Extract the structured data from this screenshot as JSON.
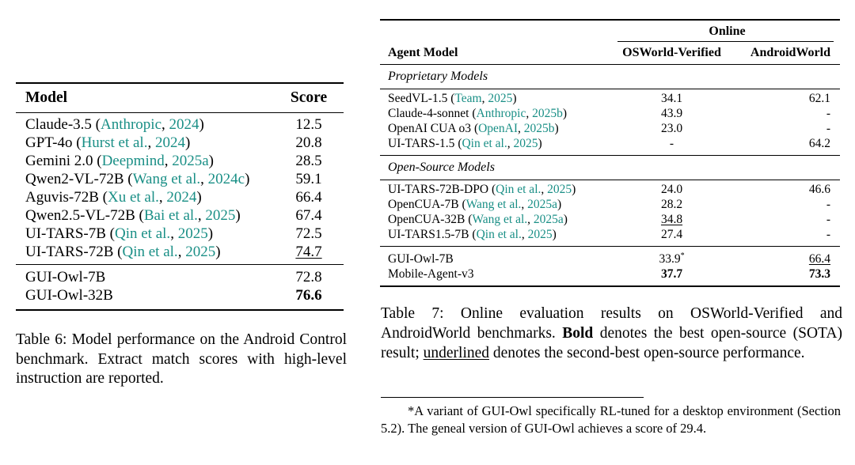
{
  "table6": {
    "headers": {
      "model": "Model",
      "score": "Score"
    },
    "rows_baseline": [
      {
        "model": "Claude-3.5",
        "cite_author": "Anthropic",
        "cite_year": "2024",
        "score": "12.5"
      },
      {
        "model": "GPT-4o",
        "cite_author": "Hurst et al.",
        "cite_year": "2024",
        "score": "20.8"
      },
      {
        "model": "Gemini 2.0",
        "cite_author": "Deepmind",
        "cite_year": "2025a",
        "score": "28.5"
      },
      {
        "model": "Qwen2-VL-72B",
        "cite_author": "Wang et al.",
        "cite_year": "2024c",
        "score": "59.1"
      },
      {
        "model": "Aguvis-72B",
        "cite_author": "Xu et al.",
        "cite_year": "2024",
        "score": "66.4"
      },
      {
        "model": "Qwen2.5-VL-72B",
        "cite_author": "Bai et al.",
        "cite_year": "2025",
        "score": "67.4"
      },
      {
        "model": "UI-TARS-7B",
        "cite_author": "Qin et al.",
        "cite_year": "2025",
        "score": "72.5"
      },
      {
        "model": "UI-TARS-72B",
        "cite_author": "Qin et al.",
        "cite_year": "2025",
        "score": "74.7"
      }
    ],
    "rows_ours": [
      {
        "model": "GUI-Owl-7B",
        "score": "72.8"
      },
      {
        "model": "GUI-Owl-32B",
        "score": "76.6"
      }
    ],
    "caption": "Table 6: Model performance on the Android Control benchmark. Extract match scores with high-level instruction are reported."
  },
  "table7": {
    "header_online": "Online",
    "header_model": "Agent Model",
    "header_osworld": "OSWorld-Verified",
    "header_android": "AndroidWorld",
    "group_proprietary": "Proprietary Models",
    "group_open": "Open-Source Models",
    "proprietary": [
      {
        "model": "SeedVL-1.5",
        "cite_author": "Team",
        "cite_year": "2025",
        "osworld": "34.1",
        "android": "62.1"
      },
      {
        "model": "Claude-4-sonnet",
        "cite_author": "Anthropic",
        "cite_year": "2025b",
        "osworld": "43.9",
        "android": "-"
      },
      {
        "model": "OpenAI CUA o3",
        "cite_author": "OpenAI",
        "cite_year": "2025b",
        "osworld": "23.0",
        "android": "-"
      },
      {
        "model": "UI-TARS-1.5",
        "cite_author": "Qin et al.",
        "cite_year": "2025",
        "osworld": "-",
        "android": "64.2"
      }
    ],
    "open_source": [
      {
        "model": "UI-TARS-72B-DPO",
        "cite_author": "Qin et al.",
        "cite_year": "2025",
        "osworld": "24.0",
        "android": "46.6"
      },
      {
        "model": "OpenCUA-7B",
        "cite_author": "Wang et al.",
        "cite_year": "2025a",
        "osworld": "28.2",
        "android": "-"
      },
      {
        "model": "OpenCUA-32B",
        "cite_author": "Wang et al.",
        "cite_year": "2025a",
        "osworld": "34.8",
        "android": "-"
      },
      {
        "model": "UI-TARS1.5-7B",
        "cite_author": "Qin et al.",
        "cite_year": "2025",
        "osworld": "27.4",
        "android": "-"
      }
    ],
    "ours": [
      {
        "model": "GUI-Owl-7B",
        "osworld": "33.9",
        "osworld_mark": "*",
        "android": "66.4"
      },
      {
        "model": "Mobile-Agent-v3",
        "osworld": "37.7",
        "android": "73.3"
      }
    ],
    "caption_start": "Table 7: Online evaluation results on OSWorld-Verified and AndroidWorld benchmarks.",
    "caption_bold": "Bold",
    "caption_mid": "denotes the best open-source (SOTA) result;",
    "caption_underlined": "underlined",
    "caption_end": "denotes the second-best open-source performance."
  },
  "footnote": "*A variant of GUI-Owl specifically RL-tuned for a desktop environment (Section 5.2). The geneal version of GUI-Owl achieves a score of 29.4."
}
